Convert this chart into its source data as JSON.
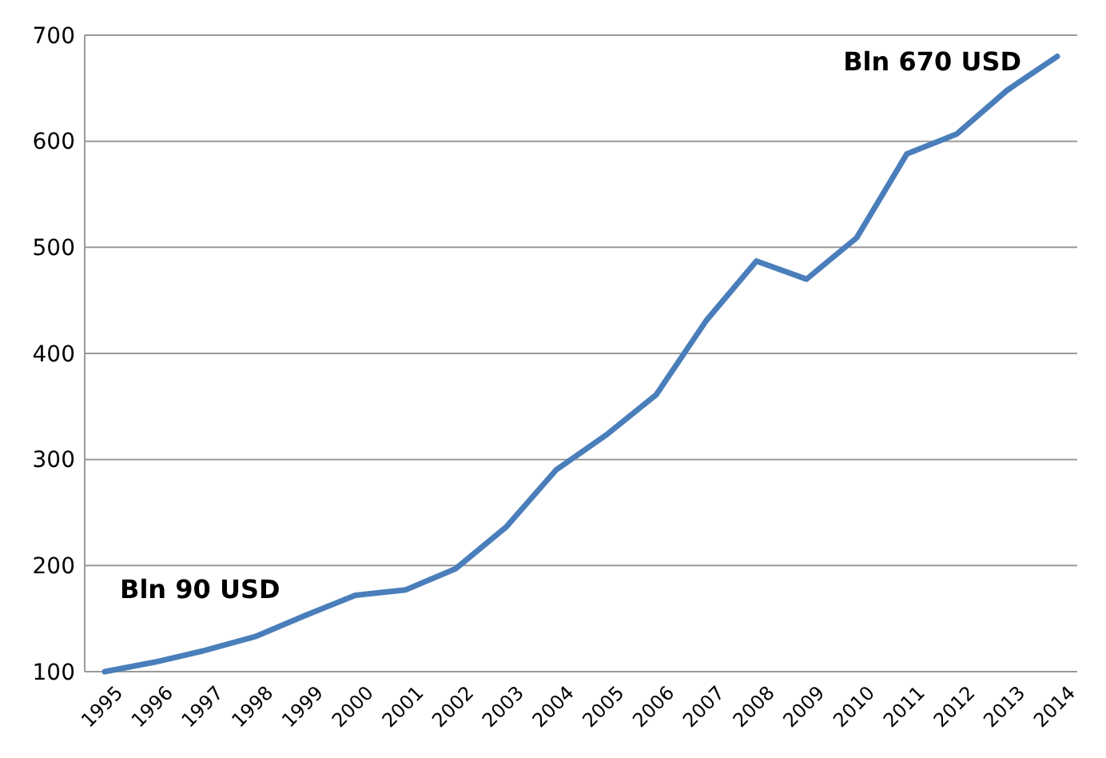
{
  "chart_data": {
    "type": "line",
    "categories": [
      "1995",
      "1996",
      "1997",
      "1998",
      "1999",
      "2000",
      "2001",
      "2002",
      "2003",
      "2004",
      "2005",
      "2006",
      "2007",
      "2008",
      "2009",
      "2010",
      "2011",
      "2012",
      "2013",
      "2014"
    ],
    "series": [
      {
        "color": "#4a7ebb",
        "values": [
          100,
          109,
          120,
          133,
          153,
          172,
          177,
          197,
          236,
          290,
          323,
          361,
          431,
          487,
          470,
          509,
          588,
          607,
          648,
          680
        ]
      }
    ],
    "ylim": [
      100,
      700
    ],
    "yticks": [
      100,
      200,
      300,
      400,
      500,
      600,
      700
    ],
    "grid": "y",
    "marker": "none",
    "line_style": "solid",
    "annotations": [
      "Bln 90 USD",
      "Bln 670 USD"
    ]
  }
}
